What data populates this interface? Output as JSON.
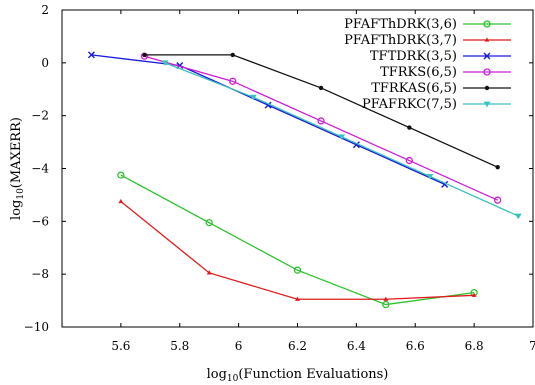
{
  "chart_data": {
    "type": "line",
    "xlabel": "log10(Function Evaluations)",
    "ylabel": "log10(MAXERR)",
    "xlim": [
      5.4,
      7.0
    ],
    "ylim": [
      -10,
      2
    ],
    "x_ticks": [
      "5.6",
      "5.8",
      "6",
      "6.2",
      "6.4",
      "6.6",
      "6.8",
      "7"
    ],
    "y_ticks": [
      "−10",
      "−8",
      "−6",
      "−4",
      "−2",
      "0",
      "2"
    ],
    "legend_position": "top-right",
    "grid": false,
    "series": [
      {
        "name": "PFAFThDRK(3,6)",
        "color": "#2dc22d",
        "marker": "circle",
        "x": [
          5.6,
          5.9,
          6.2,
          6.5,
          6.8
        ],
        "y": [
          -4.25,
          -6.05,
          -7.85,
          -9.15,
          -8.7
        ]
      },
      {
        "name": "PFAFThDRK(3,7)",
        "color": "#e01b1b",
        "marker": "triangle",
        "x": [
          5.6,
          5.9,
          6.2,
          6.5,
          6.8
        ],
        "y": [
          -5.25,
          -7.95,
          -8.95,
          -8.95,
          -8.8
        ]
      },
      {
        "name": "TFTDRK(3,5)",
        "color": "#1a1ad6",
        "marker": "x",
        "x": [
          5.5,
          5.8,
          6.1,
          6.4,
          6.7
        ],
        "y": [
          0.3,
          -0.1,
          -1.6,
          -3.1,
          -4.6
        ]
      },
      {
        "name": "TFRKS(6,5)",
        "color": "#cc1fd6",
        "marker": "circle",
        "x": [
          5.68,
          5.98,
          6.28,
          6.58,
          6.88
        ],
        "y": [
          0.25,
          -0.7,
          -2.2,
          -3.7,
          -5.2
        ]
      },
      {
        "name": "TFRKAS(6,5)",
        "color": "#111111",
        "marker": "dot",
        "x": [
          5.68,
          5.98,
          6.28,
          6.58,
          6.88
        ],
        "y": [
          0.3,
          0.3,
          -0.95,
          -2.45,
          -3.95
        ]
      },
      {
        "name": "PFAFRKC(7,5)",
        "color": "#3cc0c0",
        "marker": "triangle-down",
        "x": [
          5.75,
          6.05,
          6.35,
          6.65,
          6.95
        ],
        "y": [
          0.0,
          -1.3,
          -2.8,
          -4.3,
          -5.8
        ]
      }
    ]
  }
}
